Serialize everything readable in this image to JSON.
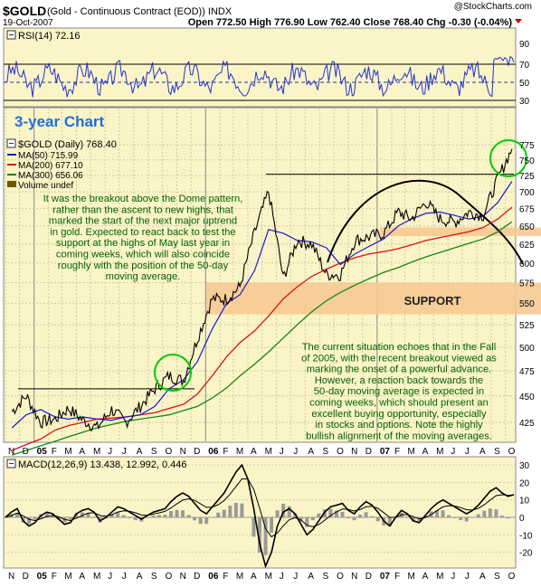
{
  "header": {
    "symbol": "$GOLD",
    "description": "(Gold - Continuous Contract (EOD))",
    "exchange": "INDX",
    "date": "19-Oct-2007",
    "ohlc": "Open 772.50  High 776.90  Low 762.40  Close 768.40  Chg -0.30 (-0.04%)",
    "watermark": "@StockCharts.com"
  },
  "colors": {
    "panel_bg": "#fbf4c7",
    "price": "#000000",
    "ma50": "#1a1acc",
    "ma200": "#dd1111",
    "ma300": "#118811",
    "band": "#f6c992",
    "annotation_text": "#006400",
    "circle": "#00cc00",
    "title": "#1f6fdd"
  },
  "rsi_panel": {
    "label": "RSI(14) 72.16",
    "tick_labels": [
      "90",
      "70",
      "50",
      "30"
    ]
  },
  "price_panel": {
    "chart_title": "3-year Chart",
    "legend": [
      "$GOLD (Daily) 768.40",
      "MA(50) 715.99",
      "MA(200) 677.10",
      "MA(300) 656.06",
      "Volume undef"
    ],
    "tick_labels": [
      "775",
      "750",
      "725",
      "700",
      "675",
      "650",
      "625",
      "600",
      "575",
      "550",
      "525",
      "500",
      "475",
      "450",
      "425"
    ],
    "support_label": "SUPPORT",
    "annotation_top": [
      "It was the breakout above the Dome pattern,",
      "rather than the ascent to new highs, that",
      "marked the start of the next major uptrend",
      "in gold. Expected to react back to test the",
      "support at the highs of May last year in",
      "coming weeks, which will also coincide",
      "roughly with the position of the 50-day",
      "moving average."
    ],
    "annotation_bottom": [
      "The current situation echoes that in the Fall",
      "of 2005, with the recent breakout viewed as",
      "marking the onset of a powerful advance.",
      "However, a reaction back towards the",
      "50-day moving average is expected in",
      "coming weeks, which should present an",
      "excellent buying opportunity, especially",
      "in stocks and options. Note the highly",
      "bullish alignment of the moving averages."
    ]
  },
  "macd_panel": {
    "label": "MACD(12,26,9) 13.438, 12.992, 0.446",
    "tick_labels": [
      "30",
      "20",
      "10",
      "0",
      "-10",
      "-20"
    ]
  },
  "x_axis": {
    "labels": [
      "N",
      "D",
      "05",
      "F",
      "M",
      "A",
      "M",
      "J",
      "J",
      "A",
      "S",
      "O",
      "N",
      "D",
      "06",
      "F",
      "M",
      "A",
      "M",
      "J",
      "J",
      "A",
      "S",
      "O",
      "N",
      "D",
      "07",
      "F",
      "M",
      "A",
      "M",
      "J",
      "J",
      "A",
      "S",
      "O"
    ]
  },
  "chart_data": {
    "type": "line",
    "title": "3-year Chart",
    "x_range": [
      "2004-11-01",
      "2007-10-19"
    ],
    "ylim": [
      400,
      790
    ],
    "y_scale": "log",
    "grid": true,
    "legend_position": "top-left",
    "series": [
      {
        "name": "$GOLD (Daily)",
        "x": [
          "2004-11",
          "2004-12",
          "2005-01",
          "2005-02",
          "2005-03",
          "2005-04",
          "2005-05",
          "2005-06",
          "2005-07",
          "2005-08",
          "2005-09",
          "2005-10",
          "2005-11",
          "2005-12",
          "2006-01",
          "2006-02",
          "2006-03",
          "2006-04",
          "2006-05",
          "2006-06",
          "2006-07",
          "2006-08",
          "2006-09",
          "2006-10",
          "2006-11",
          "2006-12",
          "2007-01",
          "2007-02",
          "2007-03",
          "2007-04",
          "2007-05",
          "2007-06",
          "2007-07",
          "2007-08",
          "2007-09",
          "2007-10"
        ],
        "values": [
          435,
          450,
          425,
          428,
          438,
          427,
          420,
          437,
          425,
          440,
          457,
          470,
          465,
          510,
          555,
          555,
          570,
          640,
          700,
          580,
          630,
          625,
          585,
          585,
          630,
          635,
          640,
          670,
          660,
          685,
          660,
          655,
          670,
          665,
          720,
          768
        ]
      },
      {
        "name": "MA(50)",
        "values": [
          420,
          432,
          437,
          430,
          428,
          430,
          428,
          427,
          430,
          432,
          440,
          457,
          466,
          485,
          520,
          550,
          560,
          590,
          645,
          640,
          630,
          628,
          620,
          598,
          612,
          622,
          632,
          650,
          660,
          668,
          670,
          665,
          660,
          664,
          684,
          716
        ]
      },
      {
        "name": "MA(200)",
        "values": [
          400,
          405,
          410,
          418,
          422,
          425,
          428,
          429,
          430,
          432,
          434,
          438,
          442,
          452,
          470,
          490,
          505,
          518,
          535,
          555,
          570,
          583,
          592,
          600,
          607,
          612,
          615,
          619,
          624,
          630,
          634,
          638,
          642,
          648,
          660,
          677
        ]
      },
      {
        "name": "MA(300)",
        "values": [
          396,
          400,
          404,
          408,
          412,
          416,
          420,
          423,
          426,
          428,
          430,
          432,
          436,
          440,
          448,
          458,
          470,
          482,
          495,
          510,
          525,
          540,
          553,
          563,
          572,
          580,
          588,
          594,
          601,
          608,
          614,
          620,
          626,
          632,
          642,
          656
        ]
      }
    ],
    "horizontal_lines": [
      457,
      727
    ],
    "support_zone": [
      537,
      575
    ],
    "resistance_zone": [
      636,
      648
    ],
    "rsi": {
      "last": 72.16,
      "ylim": [
        10,
        100
      ],
      "reference_lines": [
        70,
        50,
        30
      ]
    },
    "macd": {
      "macd": 13.438,
      "signal": 12.992,
      "histogram": 0.446,
      "ylim": [
        -25,
        35
      ]
    }
  }
}
